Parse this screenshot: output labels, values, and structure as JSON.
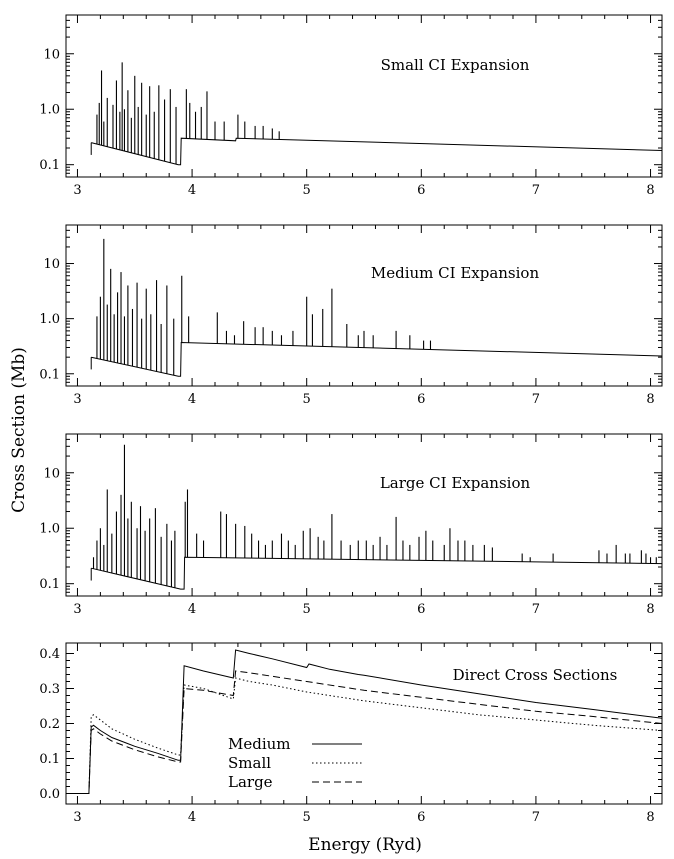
{
  "chart_data": {
    "type": "line",
    "shared_ylabel": "Cross Section (Mb)",
    "xlabel": "Energy (Ryd)",
    "xlim": [
      2.9,
      8.1
    ],
    "xticks": [
      "3",
      "4",
      "5",
      "6",
      "7",
      "8"
    ],
    "panels": [
      {
        "title": "Small CI Expansion",
        "yscale": "log",
        "ylim": [
          0.06,
          50
        ],
        "yticks": [
          "0.1",
          "1.0",
          "10"
        ],
        "background": {
          "x": [
            3.12,
            3.88,
            3.9,
            3.905,
            4.38,
            4.385,
            8.1
          ],
          "y": [
            0.25,
            0.1,
            0.1,
            0.3,
            0.27,
            0.3,
            0.18
          ]
        },
        "resonances": [
          [
            3.17,
            0.8
          ],
          [
            3.19,
            1.3
          ],
          [
            3.21,
            5.0
          ],
          [
            3.23,
            0.6
          ],
          [
            3.26,
            1.6
          ],
          [
            3.31,
            1.2
          ],
          [
            3.34,
            3.3
          ],
          [
            3.37,
            0.9
          ],
          [
            3.39,
            7.0
          ],
          [
            3.41,
            1.0
          ],
          [
            3.44,
            2.2
          ],
          [
            3.47,
            0.7
          ],
          [
            3.5,
            4.0
          ],
          [
            3.53,
            1.1
          ],
          [
            3.56,
            3.0
          ],
          [
            3.6,
            0.8
          ],
          [
            3.63,
            2.6
          ],
          [
            3.67,
            0.9
          ],
          [
            3.71,
            2.7
          ],
          [
            3.76,
            1.5
          ],
          [
            3.81,
            2.3
          ],
          [
            3.86,
            1.1
          ],
          [
            3.95,
            2.3
          ],
          [
            3.98,
            1.3
          ],
          [
            4.03,
            0.9
          ],
          [
            4.08,
            1.1
          ],
          [
            4.13,
            2.1
          ],
          [
            4.2,
            0.6
          ],
          [
            4.28,
            0.6
          ],
          [
            4.4,
            0.8
          ],
          [
            4.46,
            0.6
          ],
          [
            4.55,
            0.5
          ],
          [
            4.62,
            0.5
          ],
          [
            4.7,
            0.45
          ],
          [
            4.76,
            0.4
          ]
        ]
      },
      {
        "title": "Medium CI Expansion",
        "yscale": "log",
        "ylim": [
          0.06,
          50
        ],
        "yticks": [
          "0.1",
          "1.0",
          "10"
        ],
        "background": {
          "x": [
            3.12,
            3.88,
            3.9,
            3.905,
            8.1
          ],
          "y": [
            0.2,
            0.09,
            0.09,
            0.37,
            0.21
          ]
        },
        "resonances": [
          [
            3.17,
            1.1
          ],
          [
            3.2,
            2.5
          ],
          [
            3.23,
            28
          ],
          [
            3.26,
            1.8
          ],
          [
            3.29,
            8.0
          ],
          [
            3.32,
            1.2
          ],
          [
            3.35,
            3.0
          ],
          [
            3.38,
            7.0
          ],
          [
            3.41,
            1.1
          ],
          [
            3.44,
            4.0
          ],
          [
            3.48,
            1.5
          ],
          [
            3.52,
            4.5
          ],
          [
            3.56,
            1.0
          ],
          [
            3.6,
            3.5
          ],
          [
            3.64,
            1.2
          ],
          [
            3.69,
            5.0
          ],
          [
            3.73,
            0.8
          ],
          [
            3.78,
            4.0
          ],
          [
            3.84,
            1.0
          ],
          [
            3.91,
            6.0
          ],
          [
            3.97,
            1.1
          ],
          [
            4.22,
            1.3
          ],
          [
            4.3,
            0.6
          ],
          [
            4.37,
            0.5
          ],
          [
            4.45,
            0.9
          ],
          [
            4.55,
            0.7
          ],
          [
            4.62,
            0.7
          ],
          [
            4.7,
            0.6
          ],
          [
            4.78,
            0.5
          ],
          [
            4.88,
            0.6
          ],
          [
            5.0,
            2.5
          ],
          [
            5.05,
            1.2
          ],
          [
            5.14,
            1.5
          ],
          [
            5.22,
            3.5
          ],
          [
            5.35,
            0.8
          ],
          [
            5.45,
            0.5
          ],
          [
            5.5,
            0.6
          ],
          [
            5.58,
            0.5
          ],
          [
            5.78,
            0.6
          ],
          [
            5.9,
            0.5
          ],
          [
            6.02,
            0.4
          ],
          [
            6.08,
            0.4
          ]
        ]
      },
      {
        "title": "Large CI Expansion",
        "yscale": "log",
        "ylim": [
          0.06,
          50
        ],
        "yticks": [
          "0.1",
          "1.0",
          "10"
        ],
        "background": {
          "x": [
            3.12,
            3.9,
            3.93,
            3.935,
            8.1
          ],
          "y": [
            0.19,
            0.08,
            0.08,
            0.3,
            0.23
          ]
        },
        "resonances": [
          [
            3.14,
            0.3
          ],
          [
            3.17,
            0.6
          ],
          [
            3.2,
            1.0
          ],
          [
            3.23,
            0.5
          ],
          [
            3.26,
            5.0
          ],
          [
            3.3,
            0.8
          ],
          [
            3.34,
            2.0
          ],
          [
            3.38,
            4.0
          ],
          [
            3.41,
            32
          ],
          [
            3.44,
            1.5
          ],
          [
            3.47,
            3.0
          ],
          [
            3.52,
            1.0
          ],
          [
            3.55,
            2.5
          ],
          [
            3.59,
            0.9
          ],
          [
            3.63,
            1.5
          ],
          [
            3.68,
            2.3
          ],
          [
            3.73,
            0.7
          ],
          [
            3.78,
            1.2
          ],
          [
            3.82,
            0.6
          ],
          [
            3.85,
            0.9
          ],
          [
            3.94,
            3.0
          ],
          [
            3.96,
            5.0
          ],
          [
            4.04,
            0.8
          ],
          [
            4.1,
            0.6
          ],
          [
            4.25,
            2.0
          ],
          [
            4.3,
            1.8
          ],
          [
            4.38,
            1.2
          ],
          [
            4.46,
            1.1
          ],
          [
            4.52,
            0.8
          ],
          [
            4.58,
            0.6
          ],
          [
            4.64,
            0.5
          ],
          [
            4.7,
            0.6
          ],
          [
            4.78,
            0.8
          ],
          [
            4.84,
            0.6
          ],
          [
            4.9,
            0.5
          ],
          [
            4.97,
            0.9
          ],
          [
            5.03,
            1.0
          ],
          [
            5.1,
            0.7
          ],
          [
            5.15,
            0.6
          ],
          [
            5.22,
            1.8
          ],
          [
            5.3,
            0.6
          ],
          [
            5.38,
            0.5
          ],
          [
            5.45,
            0.6
          ],
          [
            5.52,
            0.6
          ],
          [
            5.58,
            0.5
          ],
          [
            5.64,
            0.7
          ],
          [
            5.7,
            0.5
          ],
          [
            5.78,
            1.6
          ],
          [
            5.84,
            0.6
          ],
          [
            5.9,
            0.5
          ],
          [
            5.98,
            0.7
          ],
          [
            6.04,
            0.9
          ],
          [
            6.1,
            0.6
          ],
          [
            6.2,
            0.5
          ],
          [
            6.25,
            1.0
          ],
          [
            6.32,
            0.6
          ],
          [
            6.38,
            0.6
          ],
          [
            6.45,
            0.5
          ],
          [
            6.55,
            0.5
          ],
          [
            6.62,
            0.45
          ],
          [
            6.88,
            0.35
          ],
          [
            6.95,
            0.3
          ],
          [
            7.15,
            0.35
          ],
          [
            7.55,
            0.4
          ],
          [
            7.62,
            0.35
          ],
          [
            7.7,
            0.5
          ],
          [
            7.78,
            0.35
          ],
          [
            7.82,
            0.35
          ],
          [
            7.92,
            0.4
          ],
          [
            7.96,
            0.35
          ],
          [
            8.0,
            0.3
          ],
          [
            8.05,
            0.3
          ]
        ]
      },
      {
        "title": "Direct Cross Sections",
        "yscale": "linear",
        "ylim": [
          -0.03,
          0.43
        ],
        "yticks": [
          "0.0",
          "0.1",
          "0.2",
          "0.3",
          "0.4"
        ],
        "legend": [
          "Medium",
          "Small",
          "Large"
        ],
        "series": [
          {
            "name": "Medium",
            "x": [
              2.95,
              3.1,
              3.12,
              3.14,
              3.2,
              3.3,
              3.5,
              3.7,
              3.88,
              3.9,
              3.93,
              4.1,
              4.36,
              4.38,
              4.5,
              4.7,
              5.0,
              5.02,
              5.2,
              5.45,
              5.5,
              6.0,
              6.5,
              7.0,
              7.5,
              8.1
            ],
            "y": [
              0.0,
              0.0,
              0.19,
              0.195,
              0.18,
              0.16,
              0.135,
              0.115,
              0.095,
              0.095,
              0.365,
              0.35,
              0.33,
              0.41,
              0.4,
              0.385,
              0.36,
              0.37,
              0.355,
              0.34,
              0.338,
              0.31,
              0.285,
              0.26,
              0.24,
              0.215
            ]
          },
          {
            "name": "Small",
            "x": [
              2.95,
              3.1,
              3.12,
              3.14,
              3.2,
              3.3,
              3.5,
              3.7,
              3.88,
              3.9,
              3.93,
              4.1,
              4.36,
              4.38,
              4.5,
              4.7,
              5.0,
              5.5,
              6.0,
              6.5,
              7.0,
              7.5,
              8.1
            ],
            "y": [
              0.0,
              0.0,
              0.22,
              0.225,
              0.21,
              0.185,
              0.155,
              0.13,
              0.11,
              0.11,
              0.31,
              0.3,
              0.27,
              0.33,
              0.32,
              0.31,
              0.29,
              0.265,
              0.245,
              0.225,
              0.21,
              0.195,
              0.18
            ]
          },
          {
            "name": "Large",
            "x": [
              2.95,
              3.1,
              3.12,
              3.14,
              3.2,
              3.3,
              3.5,
              3.7,
              3.88,
              3.9,
              3.93,
              4.1,
              4.36,
              4.38,
              4.5,
              4.7,
              5.0,
              5.5,
              6.0,
              6.5,
              7.0,
              7.5,
              8.1
            ],
            "y": [
              0.0,
              0.0,
              0.18,
              0.185,
              0.17,
              0.15,
              0.125,
              0.105,
              0.09,
              0.09,
              0.3,
              0.295,
              0.28,
              0.35,
              0.345,
              0.335,
              0.32,
              0.295,
              0.275,
              0.255,
              0.235,
              0.22,
              0.2
            ]
          }
        ]
      }
    ]
  }
}
